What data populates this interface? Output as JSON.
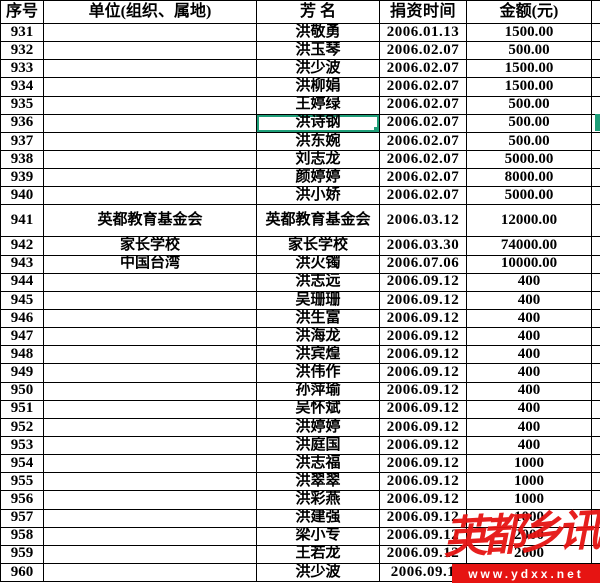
{
  "header": {
    "cols": [
      "序号",
      "单位(组织、属地)",
      "芳  名",
      "捐资时间",
      "金额(元)"
    ]
  },
  "rows": [
    {
      "no": "931",
      "unit": "",
      "name": "洪敬勇",
      "date": "2006.01.13",
      "amount": "1500.00"
    },
    {
      "no": "932",
      "unit": "",
      "name": "洪玉琴",
      "date": "2006.02.07",
      "amount": "500.00"
    },
    {
      "no": "933",
      "unit": "",
      "name": "洪少波",
      "date": "2006.02.07",
      "amount": "1500.00"
    },
    {
      "no": "934",
      "unit": "",
      "name": "洪柳娟",
      "date": "2006.02.07",
      "amount": "1500.00"
    },
    {
      "no": "935",
      "unit": "",
      "name": "王婷绿",
      "date": "2006.02.07",
      "amount": "500.00"
    },
    {
      "no": "936",
      "unit": "",
      "name": "洪诗钢",
      "date": "2006.02.07",
      "amount": "500.00"
    },
    {
      "no": "937",
      "unit": "",
      "name": "洪东婉",
      "date": "2006.02.07",
      "amount": "500.00"
    },
    {
      "no": "938",
      "unit": "",
      "name": "刘志龙",
      "date": "2006.02.07",
      "amount": "5000.00"
    },
    {
      "no": "939",
      "unit": "",
      "name": "颜婷婷",
      "date": "2006.02.07",
      "amount": "8000.00"
    },
    {
      "no": "940",
      "unit": "",
      "name": "洪小娇",
      "date": "2006.02.07",
      "amount": "5000.00"
    },
    {
      "no": "941",
      "unit": "英都教育基金会",
      "name": "英都教育基金会",
      "date": "2006.03.12",
      "amount": "12000.00"
    },
    {
      "no": "942",
      "unit": "家长学校",
      "name": "家长学校",
      "date": "2006.03.30",
      "amount": "74000.00"
    },
    {
      "no": "943",
      "unit": "中国台湾",
      "name": "洪火镯",
      "date": "2006.07.06",
      "amount": "10000.00"
    },
    {
      "no": "944",
      "unit": "",
      "name": "洪志远",
      "date": "2006.09.12",
      "amount": "400"
    },
    {
      "no": "945",
      "unit": "",
      "name": "吴珊珊",
      "date": "2006.09.12",
      "amount": "400"
    },
    {
      "no": "946",
      "unit": "",
      "name": "洪生富",
      "date": "2006.09.12",
      "amount": "400"
    },
    {
      "no": "947",
      "unit": "",
      "name": "洪海龙",
      "date": "2006.09.12",
      "amount": "400"
    },
    {
      "no": "948",
      "unit": "",
      "name": "洪宾煌",
      "date": "2006.09.12",
      "amount": "400"
    },
    {
      "no": "949",
      "unit": "",
      "name": "洪伟作",
      "date": "2006.09.12",
      "amount": "400"
    },
    {
      "no": "950",
      "unit": "",
      "name": "孙萍瑜",
      "date": "2006.09.12",
      "amount": "400"
    },
    {
      "no": "951",
      "unit": "",
      "name": "吴怀斌",
      "date": "2006.09.12",
      "amount": "400"
    },
    {
      "no": "952",
      "unit": "",
      "name": "洪婷婷",
      "date": "2006.09.12",
      "amount": "400"
    },
    {
      "no": "953",
      "unit": "",
      "name": "洪庭国",
      "date": "2006.09.12",
      "amount": "400"
    },
    {
      "no": "954",
      "unit": "",
      "name": "洪志福",
      "date": "2006.09.12",
      "amount": "1000"
    },
    {
      "no": "955",
      "unit": "",
      "name": "洪翠翠",
      "date": "2006.09.12",
      "amount": "1000"
    },
    {
      "no": "956",
      "unit": "",
      "name": "洪彩燕",
      "date": "2006.09.12",
      "amount": "1000"
    },
    {
      "no": "957",
      "unit": "",
      "name": "洪建强",
      "date": "2006.09.12",
      "amount": "1000"
    },
    {
      "no": "958",
      "unit": "",
      "name": "梁小专",
      "date": "2006.09.12",
      "amount": "2000"
    },
    {
      "no": "959",
      "unit": "",
      "name": "王若龙",
      "date": "2006.09.12",
      "amount": "2000"
    },
    {
      "no": "960",
      "unit": "",
      "name": "洪少波",
      "date": "2006.09.1",
      "amount": ""
    }
  ],
  "state": {
    "selected_name_row": "936",
    "double_height_row": "941"
  },
  "watermark": {
    "calligraphy": "英都乡讯",
    "url": "www.ydxx.net"
  },
  "colors": {
    "selection_green": "#1e9e78",
    "watermark_red": "#e61412",
    "grid_black": "#000000"
  }
}
